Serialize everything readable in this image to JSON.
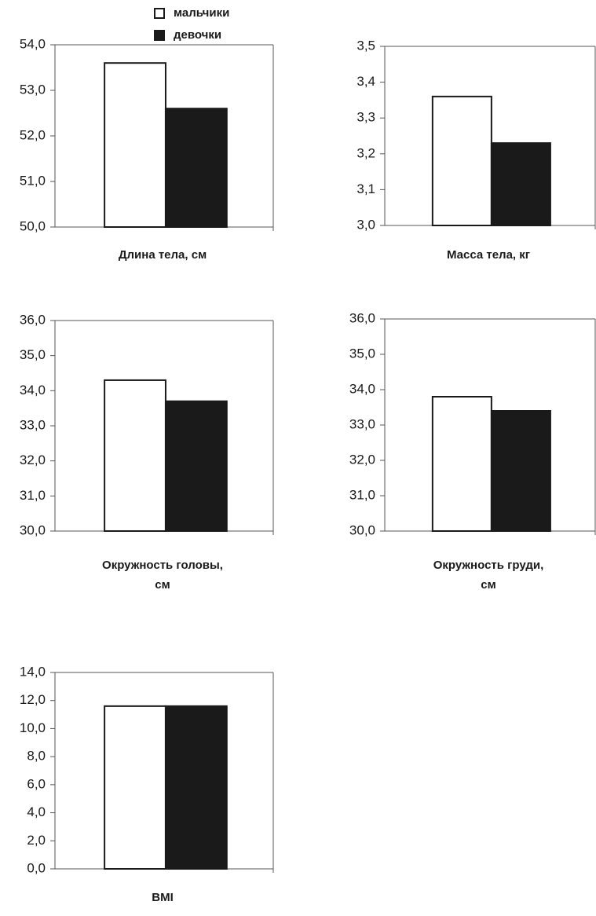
{
  "chart_data": [
    {
      "type": "bar",
      "xlabel": [
        "Длина тела, см"
      ],
      "series": [
        {
          "name": "мальчики",
          "color": "#ffffff",
          "values": [
            53.6
          ]
        },
        {
          "name": "девочки",
          "color": "#1a1a1a",
          "values": [
            52.6
          ]
        }
      ],
      "ylim": [
        50,
        54
      ],
      "yticks": [
        {
          "value": 50,
          "label": "50,0"
        },
        {
          "value": 51,
          "label": "51,0"
        },
        {
          "value": 52,
          "label": "52,0"
        },
        {
          "value": 53,
          "label": "53,0"
        },
        {
          "value": 54,
          "label": "54,0"
        }
      ]
    },
    {
      "type": "bar",
      "xlabel": [
        "Масса тела, кг"
      ],
      "series": [
        {
          "color": "#ffffff",
          "values": [
            3.36
          ]
        },
        {
          "color": "#1a1a1a",
          "values": [
            3.23
          ]
        }
      ],
      "ylim": [
        3.0,
        3.5
      ],
      "yticks": [
        {
          "value": 3.0,
          "label": "3,0"
        },
        {
          "value": 3.1,
          "label": "3,1"
        },
        {
          "value": 3.2,
          "label": "3,2"
        },
        {
          "value": 3.3,
          "label": "3,3"
        },
        {
          "value": 3.4,
          "label": "3,4"
        },
        {
          "value": 3.5,
          "label": "3,5"
        }
      ]
    },
    {
      "type": "bar",
      "xlabel": [
        "Окружность головы,",
        "см"
      ],
      "series": [
        {
          "color": "#ffffff",
          "values": [
            34.3
          ]
        },
        {
          "color": "#1a1a1a",
          "values": [
            33.7
          ]
        }
      ],
      "ylim": [
        30,
        36
      ],
      "yticks": [
        {
          "value": 30,
          "label": "30,0"
        },
        {
          "value": 31,
          "label": "31,0"
        },
        {
          "value": 32,
          "label": "32,0"
        },
        {
          "value": 33,
          "label": "33,0"
        },
        {
          "value": 34,
          "label": "34,0"
        },
        {
          "value": 35,
          "label": "35,0"
        },
        {
          "value": 36,
          "label": "36,0"
        }
      ]
    },
    {
      "type": "bar",
      "xlabel": [
        "Окружность груди,",
        "см"
      ],
      "series": [
        {
          "color": "#ffffff",
          "values": [
            33.8
          ]
        },
        {
          "color": "#1a1a1a",
          "values": [
            33.4
          ]
        }
      ],
      "ylim": [
        30,
        36
      ],
      "yticks": [
        {
          "value": 30,
          "label": "30,0"
        },
        {
          "value": 31,
          "label": "31,0"
        },
        {
          "value": 32,
          "label": "32,0"
        },
        {
          "value": 33,
          "label": "33,0"
        },
        {
          "value": 34,
          "label": "34,0"
        },
        {
          "value": 35,
          "label": "35,0"
        },
        {
          "value": 36,
          "label": "36,0"
        }
      ]
    },
    {
      "type": "bar",
      "xlabel": [
        "BMI"
      ],
      "series": [
        {
          "color": "#ffffff",
          "values": [
            11.6
          ]
        },
        {
          "color": "#1a1a1a",
          "values": [
            11.6
          ]
        }
      ],
      "ylim": [
        0,
        14
      ],
      "yticks": [
        {
          "value": 0,
          "label": "0,0"
        },
        {
          "value": 2,
          "label": "2,0"
        },
        {
          "value": 4,
          "label": "4,0"
        },
        {
          "value": 6,
          "label": "6,0"
        },
        {
          "value": 8,
          "label": "8,0"
        },
        {
          "value": 10,
          "label": "10,0"
        },
        {
          "value": 12,
          "label": "12,0"
        },
        {
          "value": 14,
          "label": "14,0"
        }
      ]
    }
  ]
}
